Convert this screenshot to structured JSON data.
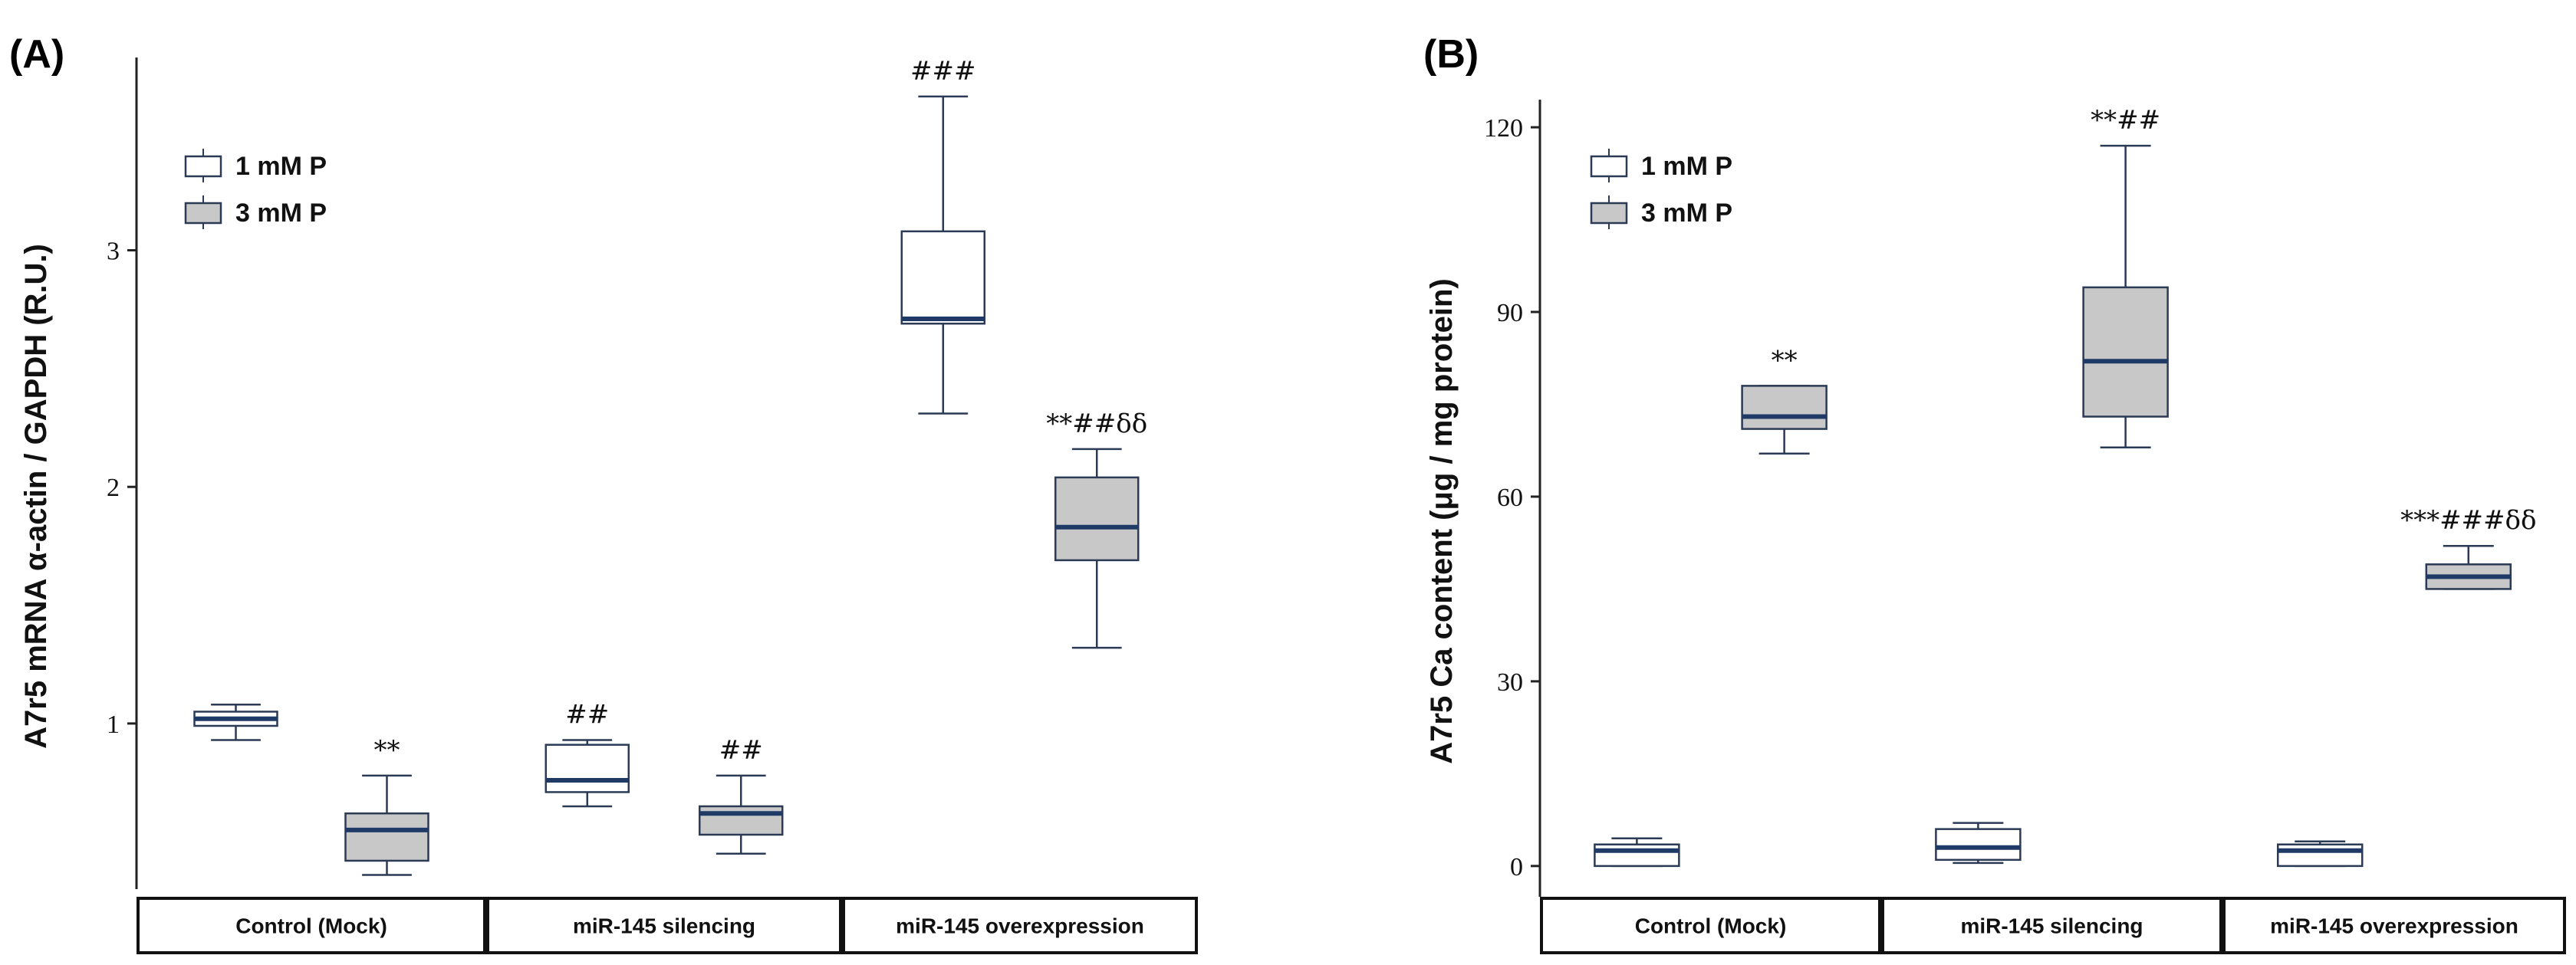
{
  "chart_data": [
    {
      "panel": "(A)",
      "type": "box",
      "ylabel": "A7r5 mRNA α-actin / GAPDH (R.U.)",
      "ylim": [
        0.3,
        3.75
      ],
      "yticks": [
        1,
        2,
        3
      ],
      "groups": [
        "Control (Mock)",
        "miR-145 silencing",
        "miR-145 overexpression"
      ],
      "legend": [
        {
          "name": "1 mM P",
          "fill": "#ffffff"
        },
        {
          "name": "3 mM P",
          "fill": "#c8c8c8"
        }
      ],
      "series": [
        {
          "name": "1 mM P",
          "boxes": [
            {
              "group": "Control (Mock)",
              "min": 0.93,
              "q1": 0.99,
              "median": 1.02,
              "q3": 1.05,
              "max": 1.08,
              "annotation": ""
            },
            {
              "group": "miR-145 silencing",
              "min": 0.65,
              "q1": 0.71,
              "median": 0.76,
              "q3": 0.91,
              "max": 0.93,
              "annotation": "##"
            },
            {
              "group": "miR-145 overexpression",
              "min": 2.31,
              "q1": 2.69,
              "median": 2.71,
              "q3": 3.08,
              "max": 3.65,
              "annotation": "###"
            }
          ]
        },
        {
          "name": "3 mM P",
          "boxes": [
            {
              "group": "Control (Mock)",
              "min": 0.36,
              "q1": 0.42,
              "median": 0.55,
              "q3": 0.62,
              "max": 0.78,
              "annotation": "**"
            },
            {
              "group": "miR-145 silencing",
              "min": 0.45,
              "q1": 0.53,
              "median": 0.62,
              "q3": 0.65,
              "max": 0.78,
              "annotation": "##"
            },
            {
              "group": "miR-145 overexpression",
              "min": 1.32,
              "q1": 1.69,
              "median": 1.83,
              "q3": 2.04,
              "max": 2.16,
              "annotation": "**##δδ"
            }
          ]
        }
      ]
    },
    {
      "panel": "(B)",
      "type": "box",
      "ylabel": "A7r5 Ca content (μg / mg protein)",
      "ylim": [
        -5,
        122
      ],
      "yticks": [
        0,
        30,
        60,
        90,
        120
      ],
      "groups": [
        "Control (Mock)",
        "miR-145 silencing",
        "miR-145 overexpression"
      ],
      "legend": [
        {
          "name": "1 mM P",
          "fill": "#ffffff"
        },
        {
          "name": "3 mM P",
          "fill": "#c8c8c8"
        }
      ],
      "series": [
        {
          "name": "1 mM P",
          "boxes": [
            {
              "group": "Control (Mock)",
              "min": 0,
              "q1": 0,
              "median": 2.5,
              "q3": 3.5,
              "max": 4.5,
              "annotation": ""
            },
            {
              "group": "miR-145 silencing",
              "min": 0.5,
              "q1": 1,
              "median": 3,
              "q3": 6,
              "max": 7,
              "annotation": ""
            },
            {
              "group": "miR-145 overexpression",
              "min": 0,
              "q1": 0,
              "median": 2.5,
              "q3": 3.5,
              "max": 4,
              "annotation": ""
            }
          ]
        },
        {
          "name": "3 mM P",
          "boxes": [
            {
              "group": "Control (Mock)",
              "min": 67,
              "q1": 71,
              "median": 73,
              "q3": 78,
              "max": 78,
              "annotation": "**"
            },
            {
              "group": "miR-145 silencing",
              "min": 68,
              "q1": 73,
              "median": 82,
              "q3": 94,
              "max": 117,
              "annotation": "**##"
            },
            {
              "group": "miR-145 overexpression",
              "min": 45,
              "q1": 45,
              "median": 47,
              "q3": 49,
              "max": 52,
              "annotation": "***###δδ"
            }
          ]
        }
      ]
    }
  ]
}
